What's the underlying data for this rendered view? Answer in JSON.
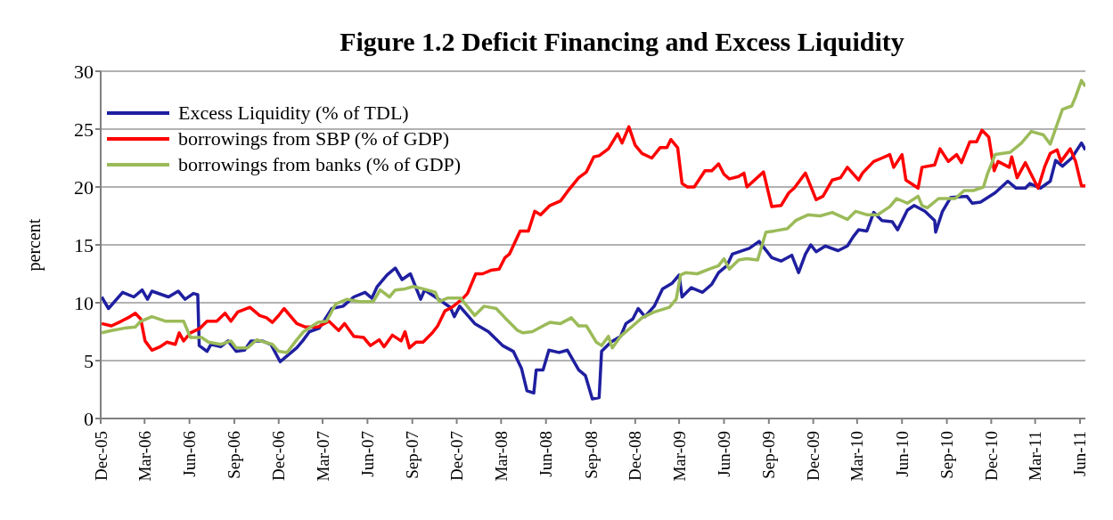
{
  "chart_data": {
    "type": "line",
    "title": "Figure 1.2 Deficit Financing and Excess Liquidity",
    "ylabel": "percent",
    "xlim": [
      "2005-12-01",
      "2011-06-12"
    ],
    "xticks": [
      {
        "value": "2005-12",
        "label": "Dec-05"
      },
      {
        "value": "2006-03",
        "label": "Mar-06"
      },
      {
        "value": "2006-06",
        "label": "Jun-06"
      },
      {
        "value": "2006-09",
        "label": "Sep-06"
      },
      {
        "value": "2006-12",
        "label": "Dec-06"
      },
      {
        "value": "2007-03",
        "label": "Mar-07"
      },
      {
        "value": "2007-06",
        "label": "Jun-07"
      },
      {
        "value": "2007-09",
        "label": "Sep-07"
      },
      {
        "value": "2007-12",
        "label": "Dec-07"
      },
      {
        "value": "2008-03",
        "label": "Mar-08"
      },
      {
        "value": "2008-06",
        "label": "Jun-08"
      },
      {
        "value": "2008-09",
        "label": "Sep-08"
      },
      {
        "value": "2008-12",
        "label": "Dec-08"
      },
      {
        "value": "2009-03",
        "label": "Mar-09"
      },
      {
        "value": "2009-06",
        "label": "Jun-09"
      },
      {
        "value": "2009-09",
        "label": "Sep-09"
      },
      {
        "value": "2009-12",
        "label": "Dec-09"
      },
      {
        "value": "2010-03",
        "label": "Mar-10"
      },
      {
        "value": "2010-06",
        "label": "Jun-10"
      },
      {
        "value": "2010-09",
        "label": "Sep-10"
      },
      {
        "value": "2010-12",
        "label": "Dec-10"
      },
      {
        "value": "2011-03",
        "label": "Mar-11"
      },
      {
        "value": "2011-06",
        "label": "Jun-11"
      }
    ],
    "ylim": [
      0,
      30
    ],
    "yticks": [
      0,
      5,
      10,
      15,
      20,
      25,
      30
    ],
    "grid": "y",
    "legend": "top left",
    "marker": "none",
    "line_style": "solid",
    "series": [
      {
        "name": "Excess Liquidity (% of TDL)",
        "color": "#1f1fa0",
        "x": [
          "2005-12-03",
          "2005-12-17",
          "2006-01-15",
          "2006-02-07",
          "2006-02-24",
          "2006-03-07",
          "2006-03-16",
          "2006-04-19",
          "2006-05-09",
          "2006-05-23",
          "2006-06-09",
          "2006-06-18",
          "2006-06-21",
          "2006-07-07",
          "2006-07-15",
          "2006-08-04",
          "2006-08-19",
          "2006-09-05",
          "2006-09-22",
          "2006-10-05",
          "2006-10-28",
          "2006-11-15",
          "2006-12-04",
          "2006-12-15",
          "2007-01-07",
          "2007-01-19",
          "2007-02-02",
          "2007-02-22",
          "2007-03-20",
          "2007-04-12",
          "2007-05-04",
          "2007-05-27",
          "2007-06-10",
          "2007-06-21",
          "2007-07-11",
          "2007-07-28",
          "2007-08-11",
          "2007-08-28",
          "2007-09-18",
          "2007-09-26",
          "2007-10-18",
          "2007-11-18",
          "2007-11-26",
          "2007-12-07",
          "2008-01-07",
          "2008-02-04",
          "2008-03-04",
          "2008-03-26",
          "2008-04-12",
          "2008-04-23",
          "2008-05-07",
          "2008-05-12",
          "2008-05-26",
          "2008-06-07",
          "2008-06-28",
          "2008-07-15",
          "2008-08-07",
          "2008-08-21",
          "2008-09-04",
          "2008-09-18",
          "2008-09-23",
          "2008-10-12",
          "2008-11-01",
          "2008-11-12",
          "2008-11-26",
          "2008-12-07",
          "2008-12-21",
          "2009-01-09",
          "2009-01-26",
          "2009-02-15",
          "2009-03-01",
          "2009-03-07",
          "2009-03-26",
          "2009-04-18",
          "2009-05-07",
          "2009-05-21",
          "2009-06-07",
          "2009-06-18",
          "2009-07-23",
          "2009-08-12",
          "2009-09-07",
          "2009-09-26",
          "2009-10-18",
          "2009-11-01",
          "2009-11-15",
          "2009-11-26",
          "2009-12-07",
          "2009-12-26",
          "2010-01-21",
          "2010-02-09",
          "2010-02-21",
          "2010-03-04",
          "2010-03-21",
          "2010-04-04",
          "2010-04-21",
          "2010-05-12",
          "2010-05-23",
          "2010-06-12",
          "2010-06-26",
          "2010-07-18",
          "2010-08-07",
          "2010-08-09",
          "2010-08-23",
          "2010-09-09",
          "2010-10-12",
          "2010-10-23",
          "2010-11-09",
          "2010-12-09",
          "2011-01-04",
          "2011-01-21",
          "2011-02-09",
          "2011-02-18",
          "2011-03-12",
          "2011-04-01",
          "2011-04-12",
          "2011-04-26",
          "2011-05-15",
          "2011-06-04",
          "2011-06-12"
        ],
        "values": [
          10.5,
          9.5,
          10.9,
          10.5,
          11.1,
          10.3,
          11.0,
          10.5,
          11.0,
          10.3,
          10.8,
          10.7,
          6.3,
          5.8,
          6.4,
          6.2,
          6.7,
          5.8,
          5.9,
          6.7,
          6.7,
          6.4,
          4.9,
          5.3,
          6.1,
          6.7,
          7.5,
          7.8,
          9.5,
          9.7,
          10.5,
          10.9,
          10.4,
          11.4,
          12.4,
          13.0,
          12.0,
          12.5,
          10.3,
          11.1,
          10.5,
          9.6,
          8.8,
          9.7,
          8.2,
          7.5,
          6.3,
          5.8,
          4.3,
          2.4,
          2.2,
          4.2,
          4.2,
          5.9,
          5.7,
          5.9,
          4.2,
          3.7,
          1.7,
          1.8,
          5.8,
          6.6,
          7.1,
          8.2,
          8.6,
          9.5,
          8.8,
          9.7,
          11.2,
          11.7,
          12.4,
          10.5,
          11.3,
          10.9,
          11.6,
          12.6,
          13.2,
          14.2,
          14.7,
          15.3,
          13.9,
          13.6,
          14.1,
          12.6,
          14.2,
          15.0,
          14.4,
          14.9,
          14.5,
          14.9,
          15.7,
          16.3,
          16.2,
          17.8,
          17.1,
          17.0,
          16.3,
          18.0,
          18.4,
          17.9,
          17.1,
          16.1,
          17.9,
          19.1,
          19.2,
          18.6,
          18.7,
          19.5,
          20.5,
          19.9,
          19.9,
          20.3,
          19.9,
          20.5,
          22.3,
          21.8,
          22.5,
          23.8,
          23.2
        ]
      },
      {
        "name": "borrowings from SBP (% of GDP)",
        "color": "#ff0000",
        "x": [
          "2005-12-03",
          "2005-12-23",
          "2006-01-12",
          "2006-01-26",
          "2006-02-10",
          "2006-02-21",
          "2006-03-02",
          "2006-03-16",
          "2006-04-02",
          "2006-04-16",
          "2006-05-03",
          "2006-05-11",
          "2006-05-20",
          "2006-06-03",
          "2006-06-23",
          "2006-07-07",
          "2006-07-27",
          "2006-08-13",
          "2006-08-25",
          "2006-09-08",
          "2006-10-03",
          "2006-10-23",
          "2006-11-06",
          "2006-11-18",
          "2006-12-01",
          "2006-12-12",
          "2007-01-07",
          "2007-01-25",
          "2007-02-19",
          "2007-03-14",
          "2007-04-03",
          "2007-04-15",
          "2007-05-04",
          "2007-05-24",
          "2007-06-07",
          "2007-06-25",
          "2007-07-05",
          "2007-07-22",
          "2007-08-09",
          "2007-08-17",
          "2007-08-26",
          "2007-09-09",
          "2007-09-23",
          "2007-10-12",
          "2007-10-23",
          "2007-11-07",
          "2007-11-21",
          "2007-12-12",
          "2007-12-23",
          "2008-01-09",
          "2008-01-23",
          "2008-02-09",
          "2008-02-26",
          "2008-03-09",
          "2008-03-18",
          "2008-04-09",
          "2008-04-26",
          "2008-05-09",
          "2008-05-21",
          "2008-06-09",
          "2008-07-01",
          "2008-07-15",
          "2008-08-07",
          "2008-08-23",
          "2008-09-07",
          "2008-09-18",
          "2008-10-07",
          "2008-10-26",
          "2008-11-04",
          "2008-11-18",
          "2008-12-01",
          "2008-12-15",
          "2009-01-04",
          "2009-01-21",
          "2009-02-04",
          "2009-02-12",
          "2009-02-26",
          "2009-03-07",
          "2009-03-18",
          "2009-04-01",
          "2009-04-23",
          "2009-05-07",
          "2009-05-21",
          "2009-06-01",
          "2009-06-12",
          "2009-07-01",
          "2009-07-12",
          "2009-07-18",
          "2009-08-21",
          "2009-09-07",
          "2009-09-26",
          "2009-10-12",
          "2009-10-23",
          "2009-11-15",
          "2009-12-07",
          "2009-12-21",
          "2010-01-09",
          "2010-01-26",
          "2010-02-09",
          "2010-03-04",
          "2010-03-12",
          "2010-04-04",
          "2010-04-21",
          "2010-05-07",
          "2010-05-15",
          "2010-06-01",
          "2010-06-09",
          "2010-07-04",
          "2010-07-12",
          "2010-08-07",
          "2010-08-18",
          "2010-09-04",
          "2010-09-21",
          "2010-10-01",
          "2010-10-18",
          "2010-11-01",
          "2010-11-12",
          "2010-11-26",
          "2010-12-07",
          "2010-12-15",
          "2011-01-07",
          "2011-01-12",
          "2011-01-23",
          "2011-02-09",
          "2011-03-07",
          "2011-03-21",
          "2011-04-01",
          "2011-04-15",
          "2011-04-23",
          "2011-05-12",
          "2011-05-23",
          "2011-06-04",
          "2011-06-12"
        ],
        "values": [
          8.2,
          8.0,
          8.4,
          8.7,
          9.1,
          8.6,
          6.7,
          5.9,
          6.2,
          6.6,
          6.4,
          7.4,
          6.7,
          7.4,
          7.8,
          8.4,
          8.4,
          9.1,
          8.4,
          9.2,
          9.6,
          8.9,
          8.7,
          8.3,
          8.9,
          9.5,
          8.2,
          7.9,
          7.9,
          8.4,
          7.6,
          8.2,
          7.1,
          7.0,
          6.3,
          6.8,
          6.2,
          7.2,
          6.7,
          7.5,
          6.1,
          6.6,
          6.6,
          7.4,
          8.0,
          9.3,
          9.6,
          10.3,
          10.8,
          12.5,
          12.5,
          12.8,
          12.9,
          13.9,
          14.2,
          16.2,
          16.2,
          17.9,
          17.6,
          18.4,
          18.8,
          19.6,
          20.8,
          21.3,
          22.6,
          22.7,
          23.3,
          24.6,
          23.8,
          25.2,
          23.6,
          22.9,
          22.5,
          23.4,
          23.4,
          24.1,
          23.4,
          20.3,
          20.0,
          20.0,
          21.4,
          21.4,
          22.0,
          21.1,
          20.7,
          20.9,
          21.2,
          20.0,
          21.3,
          18.3,
          18.4,
          19.5,
          19.9,
          21.2,
          18.9,
          19.2,
          20.6,
          20.8,
          21.7,
          20.6,
          21.2,
          22.2,
          22.5,
          22.8,
          21.7,
          22.8,
          20.6,
          19.9,
          21.7,
          21.9,
          23.3,
          22.2,
          22.8,
          22.1,
          23.9,
          23.9,
          24.9,
          24.3,
          21.4,
          22.2,
          21.7,
          22.6,
          20.8,
          22.1,
          19.9,
          21.8,
          22.9,
          23.2,
          22.2,
          23.3,
          22.2,
          20.1,
          20.1
        ]
      },
      {
        "name": "borrowings from banks (% of GDP)",
        "color": "#9bbb59",
        "x": [
          "2005-12-03",
          "2005-12-23",
          "2006-01-18",
          "2006-02-10",
          "2006-02-21",
          "2006-03-16",
          "2006-04-14",
          "2006-05-20",
          "2006-06-03",
          "2006-06-26",
          "2006-07-10",
          "2006-08-04",
          "2006-08-25",
          "2006-09-05",
          "2006-09-28",
          "2006-10-17",
          "2006-11-18",
          "2006-12-01",
          "2006-12-18",
          "2007-01-07",
          "2007-01-21",
          "2007-02-19",
          "2007-03-09",
          "2007-03-28",
          "2007-04-20",
          "2007-05-15",
          "2007-06-13",
          "2007-06-27",
          "2007-07-16",
          "2007-07-28",
          "2007-08-17",
          "2007-09-03",
          "2007-09-23",
          "2007-10-18",
          "2007-10-26",
          "2007-11-12",
          "2007-12-09",
          "2008-01-07",
          "2008-01-26",
          "2008-02-20",
          "2008-03-09",
          "2008-04-04",
          "2008-04-15",
          "2008-05-04",
          "2008-05-26",
          "2008-06-09",
          "2008-07-01",
          "2008-07-23",
          "2008-08-07",
          "2008-08-23",
          "2008-09-12",
          "2008-09-23",
          "2008-10-07",
          "2008-10-15",
          "2008-11-01",
          "2008-11-26",
          "2008-12-15",
          "2009-01-09",
          "2009-02-09",
          "2009-02-23",
          "2009-03-04",
          "2009-03-15",
          "2009-04-07",
          "2009-05-01",
          "2009-05-21",
          "2009-06-01",
          "2009-06-12",
          "2009-07-01",
          "2009-07-18",
          "2009-08-09",
          "2009-08-26",
          "2009-09-12",
          "2009-10-09",
          "2009-10-26",
          "2009-11-21",
          "2009-12-15",
          "2010-01-09",
          "2010-02-09",
          "2010-02-26",
          "2010-03-21",
          "2010-04-12",
          "2010-05-07",
          "2010-05-21",
          "2010-06-12",
          "2010-07-04",
          "2010-07-12",
          "2010-07-23",
          "2010-08-15",
          "2010-09-18",
          "2010-10-07",
          "2010-10-26",
          "2010-11-15",
          "2010-11-23",
          "2010-12-09",
          "2011-01-09",
          "2011-02-01",
          "2011-02-21",
          "2011-03-18",
          "2011-04-01",
          "2011-04-15",
          "2011-04-26",
          "2011-05-15",
          "2011-05-23",
          "2011-06-04",
          "2011-06-12"
        ],
        "values": [
          7.4,
          7.6,
          7.8,
          7.9,
          8.4,
          8.8,
          8.4,
          8.4,
          7.0,
          7.0,
          6.6,
          6.4,
          6.7,
          6.1,
          6.1,
          6.8,
          6.4,
          5.8,
          5.7,
          6.8,
          7.5,
          8.3,
          8.4,
          9.9,
          10.3,
          10.1,
          10.1,
          11.1,
          10.5,
          11.1,
          11.2,
          11.4,
          11.2,
          10.9,
          10.1,
          10.4,
          10.4,
          8.9,
          9.7,
          9.5,
          8.7,
          7.6,
          7.4,
          7.5,
          8.0,
          8.3,
          8.2,
          8.7,
          8.0,
          8.0,
          6.6,
          6.3,
          7.1,
          6.1,
          7.1,
          8.0,
          8.7,
          9.2,
          9.6,
          10.3,
          12.4,
          12.6,
          12.5,
          12.9,
          13.2,
          13.8,
          12.9,
          13.7,
          13.8,
          13.7,
          16.1,
          16.2,
          16.4,
          17.1,
          17.6,
          17.5,
          17.8,
          17.2,
          17.9,
          17.6,
          17.6,
          18.3,
          19.0,
          18.6,
          19.2,
          18.4,
          18.2,
          19.0,
          19.0,
          19.7,
          19.7,
          20.0,
          21.1,
          22.8,
          23.0,
          23.8,
          24.8,
          24.5,
          23.7,
          25.4,
          26.7,
          27.0,
          27.8,
          29.2,
          28.7
        ]
      }
    ]
  }
}
